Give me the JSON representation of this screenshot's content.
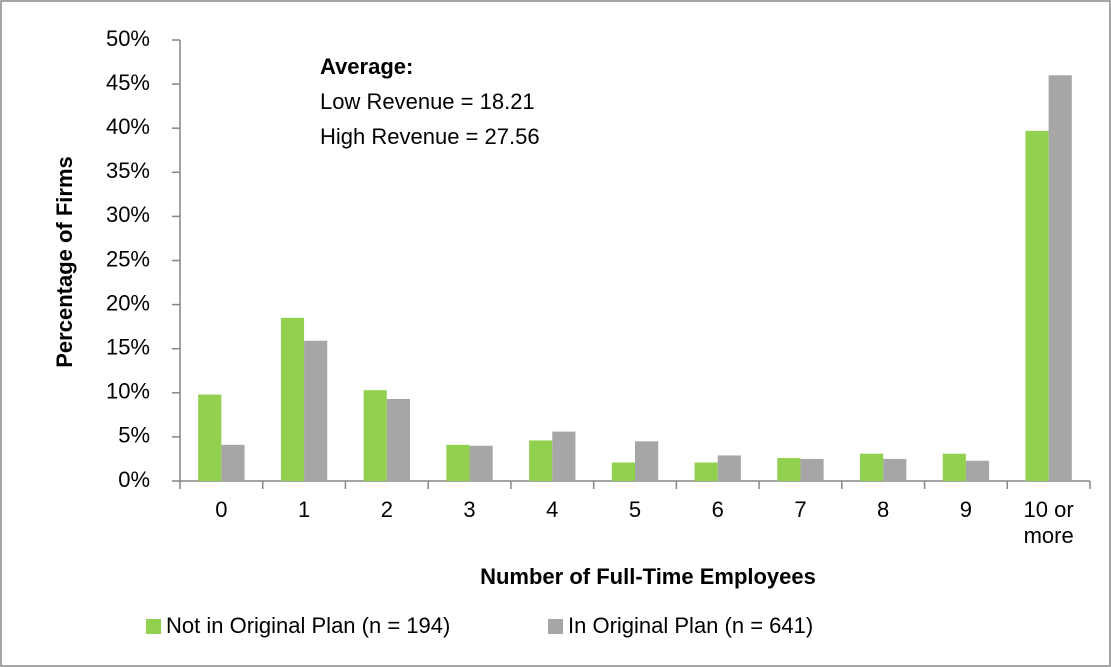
{
  "chart_data": {
    "type": "bar",
    "categories": [
      "0",
      "1",
      "2",
      "3",
      "4",
      "5",
      "6",
      "7",
      "8",
      "9",
      "10 or more"
    ],
    "series": [
      {
        "name": "Not in Original Plan (n = 194)",
        "color": "#92d050",
        "values": [
          9.8,
          18.5,
          10.3,
          4.1,
          4.6,
          2.1,
          2.1,
          2.6,
          3.1,
          3.1,
          39.7
        ]
      },
      {
        "name": "In Original Plan (n = 641)",
        "color": "#a6a6a6",
        "values": [
          4.1,
          15.9,
          9.3,
          4.0,
          5.6,
          4.5,
          2.9,
          2.5,
          2.5,
          2.3,
          46.0
        ]
      }
    ],
    "ylim": [
      0,
      50
    ],
    "yticks": [
      {
        "value": 0,
        "label": "0%"
      },
      {
        "value": 5,
        "label": "5%"
      },
      {
        "value": 10,
        "label": "10%"
      },
      {
        "value": 15,
        "label": "15%"
      },
      {
        "value": 20,
        "label": "20%"
      },
      {
        "value": 25,
        "label": "25%"
      },
      {
        "value": 30,
        "label": "30%"
      },
      {
        "value": 35,
        "label": "35%"
      },
      {
        "value": 40,
        "label": "40%"
      },
      {
        "value": 45,
        "label": "45%"
      },
      {
        "value": 50,
        "label": "50%"
      }
    ],
    "y_label": "Percentage of Firms",
    "x_label": "Number of Full-Time Employees",
    "annotation": {
      "title": "Average:",
      "lines": [
        "Low Revenue = 18.21",
        "High Revenue = 27.56"
      ]
    },
    "legend": "bottom"
  }
}
